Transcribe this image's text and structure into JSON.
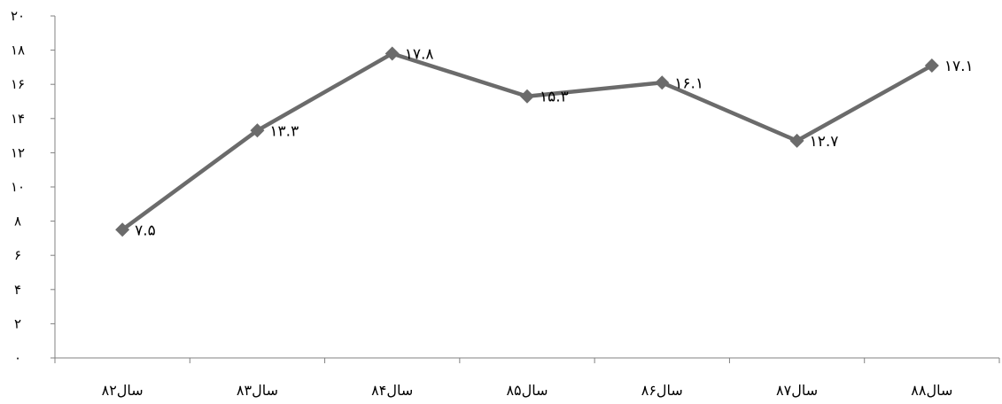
{
  "chart_data": {
    "type": "line",
    "categories": [
      "سال۸۲",
      "سال۸۳",
      "سال۸۴",
      "سال۸۵",
      "سال۸۶",
      "سال۸۷",
      "سال۸۸"
    ],
    "series": [
      {
        "values": [
          7.5,
          13.3,
          17.8,
          15.3,
          16.1,
          12.7,
          17.1
        ],
        "data_labels": [
          "۷.۵",
          "۱۳.۳",
          "۱۷.۸",
          "۱۵.۳",
          "۱۶.۱",
          "۱۲.۷",
          "۱۷.۱"
        ],
        "color": "#6b6b6b",
        "marker": "diamond"
      }
    ],
    "ylim": [
      0,
      20
    ],
    "yticks": [
      0,
      2,
      4,
      6,
      8,
      10,
      12,
      14,
      16,
      18,
      20
    ],
    "ytick_labels": [
      "۰",
      "۲",
      "۴",
      "۶",
      "۸",
      "۱۰",
      "۱۲",
      "۱۴",
      "۱۶",
      "۱۸",
      "۲۰"
    ],
    "grid": false,
    "legend": "none",
    "title": "",
    "xlabel": "",
    "ylabel": ""
  }
}
